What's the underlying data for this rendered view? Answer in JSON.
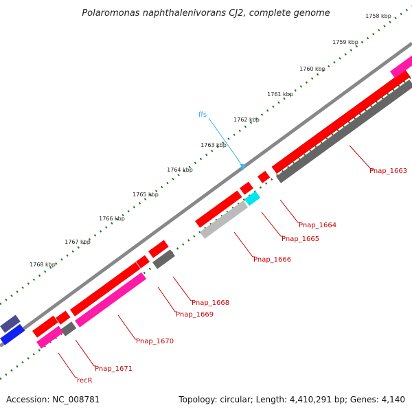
{
  "title": "Polaromonas naphthalenivorans CJ2, complete genome",
  "footer": {
    "accession": "Accession: NC_008781",
    "summary": "Topology: circular; Length: 4,410,291 bp; Genes: 4,140"
  },
  "ticks": [
    "1758 kbp",
    "1759 kbp",
    "1760 kbp",
    "1761 kbp",
    "1762 kbp",
    "1763 kbp",
    "1764 kbp",
    "1765 kbp",
    "1766 kbp",
    "1767 kbp",
    "1768 kbp"
  ],
  "rna_label": "ffs",
  "gene_labels": [
    "Pnap_1663",
    "Pnap_1664",
    "Pnap_1665",
    "Pnap_1666",
    "Pnap_1668",
    "Pnap_1669",
    "Pnap_1670",
    "Pnap_1671",
    "recR"
  ],
  "colors": {
    "cds": "#ff0000",
    "cds_dark": "#cc0000",
    "gene_magenta": "#ff1aa8",
    "gene_gray": "#666666",
    "gene_lightgray": "#bbbbbb",
    "gene_cyan": "#00e5ee",
    "gene_navy": "#4b4b8f",
    "gene_blue": "#1020ee",
    "backbone": "#888888",
    "ticks": "#1a7a1a",
    "rna": "#33aaee"
  }
}
